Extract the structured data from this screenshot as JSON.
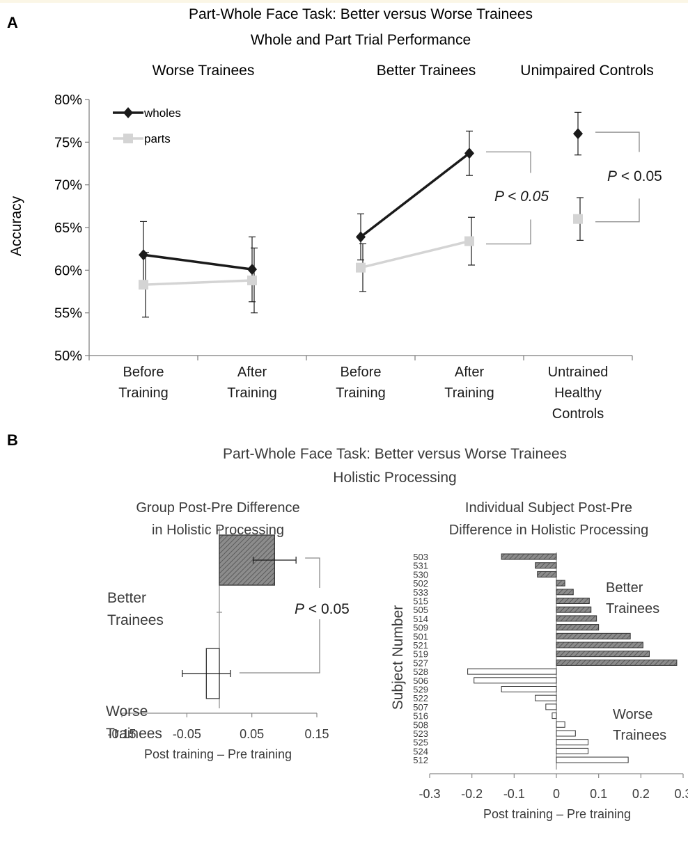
{
  "figure": {
    "panel_a_letter": "A",
    "panel_b_letter": "B"
  },
  "chart_data": [
    {
      "type": "line",
      "title": "Part-Whole Face Task: Better versus Worse Trainees",
      "subtitle": "Whole and Part Trial Performance",
      "group_labels": [
        "Worse Trainees",
        "Better Trainees",
        "Unimpaired Controls"
      ],
      "categories": [
        [
          "Before",
          "Training"
        ],
        [
          "After",
          "Training"
        ],
        [
          "Before",
          "Training"
        ],
        [
          "After",
          "Training"
        ],
        [
          "Untrained",
          "Healthy",
          "Controls"
        ]
      ],
      "ylabel": "Accuracy",
      "ylim": [
        50,
        80
      ],
      "ytick_labels": [
        "50%",
        "55%",
        "60%",
        "65%",
        "70%",
        "75%",
        "80%"
      ],
      "series": [
        {
          "name": "wholes",
          "color": "#1a1a1a",
          "marker": "diamond",
          "values": [
            61.8,
            60.1,
            63.9,
            73.7,
            76.0
          ],
          "errors": [
            3.9,
            3.8,
            2.7,
            2.6,
            2.5
          ],
          "line_segments": [
            [
              0,
              1
            ],
            [
              2,
              3
            ]
          ]
        },
        {
          "name": "parts",
          "color": "#d4d4d4",
          "marker": "square",
          "values": [
            58.3,
            58.8,
            60.3,
            63.4,
            66.0
          ],
          "errors": [
            3.8,
            3.8,
            2.8,
            2.8,
            2.5
          ],
          "line_segments": [
            [
              0,
              1
            ],
            [
              2,
              3
            ]
          ]
        }
      ],
      "annotations": [
        {
          "text_italic": "P < 0.05",
          "text_rest": ""
        },
        {
          "text_italic": "P",
          "text_rest": " < 0.05"
        }
      ],
      "legend": "top-left",
      "grid": false
    },
    {
      "type": "bar",
      "orientation": "horizontal",
      "title": "Part-Whole Face Task: Better versus Worse Trainees",
      "subtitle": "Holistic Processing",
      "subplot_title": [
        "Group Post-Pre Difference",
        "in Holistic Processing"
      ],
      "categories": [
        [
          "Better",
          "Trainees"
        ],
        [
          "Worse",
          "Trainees"
        ]
      ],
      "values": [
        0.085,
        -0.02
      ],
      "errors": [
        0.033,
        0.037
      ],
      "fills": [
        "hatched",
        "white"
      ],
      "xlabel": "Post training – Pre training",
      "xlim": [
        -0.15,
        0.15
      ],
      "xtick_labels": [
        "-0.15",
        "-0.05",
        "0.05",
        "0.15"
      ],
      "annotation": {
        "text_italic": "P",
        "text_rest": " < 0.05"
      }
    },
    {
      "type": "bar",
      "orientation": "horizontal",
      "subplot_title": [
        "Individual Subject Post-Pre",
        "Difference in Holistic Processing"
      ],
      "ylabel": "Subject Number",
      "xlabel": "Post training – Pre training",
      "xlim": [
        -0.3,
        0.3
      ],
      "xtick_labels": [
        "-0.3",
        "-0.2",
        "-0.1",
        "0",
        "0.1",
        "0.2",
        "0.3"
      ],
      "group_labels": [
        [
          "Better",
          "Trainees"
        ],
        [
          "Worse",
          "Trainees"
        ]
      ],
      "categories": [
        "503",
        "531",
        "530",
        "502",
        "533",
        "515",
        "505",
        "514",
        "509",
        "501",
        "521",
        "519",
        "527",
        "528",
        "506",
        "529",
        "522",
        "507",
        "516",
        "508",
        "523",
        "525",
        "524",
        "512"
      ],
      "values": [
        -0.13,
        -0.05,
        -0.045,
        0.02,
        0.04,
        0.078,
        0.082,
        0.095,
        0.1,
        0.175,
        0.205,
        0.22,
        0.285,
        -0.21,
        -0.195,
        -0.13,
        -0.05,
        -0.025,
        -0.01,
        0.02,
        0.045,
        0.075,
        0.075,
        0.17
      ],
      "groups": [
        "better",
        "better",
        "better",
        "better",
        "better",
        "better",
        "better",
        "better",
        "better",
        "better",
        "better",
        "better",
        "better",
        "worse",
        "worse",
        "worse",
        "worse",
        "worse",
        "worse",
        "worse",
        "worse",
        "worse",
        "worse",
        "worse"
      ]
    }
  ]
}
